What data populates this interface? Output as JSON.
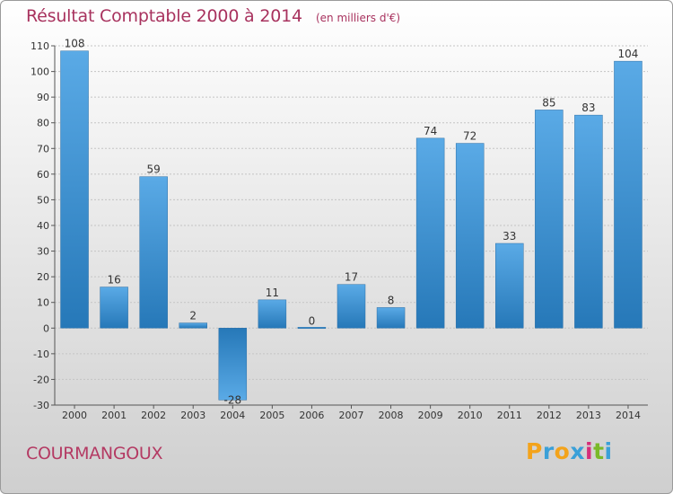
{
  "chart_title": "Résultat Comptable 2000 à 2014",
  "chart_subtitle": "(en milliers d'€)",
  "commune_name": "COURMANGOUX",
  "logo": {
    "letters": [
      "P",
      "r",
      "o",
      "x",
      "i",
      "t",
      "i"
    ],
    "colors": [
      "#f3a31b",
      "#3aa0d8",
      "#f3a31b",
      "#3aa0d8",
      "#d62f7a",
      "#7ab929",
      "#3aa0d8"
    ]
  },
  "colors": {
    "bar_top": "#5aaae6",
    "bar_bottom": "#2678b8",
    "title": "#a8325e"
  },
  "chart_data": {
    "type": "bar",
    "title": "Résultat Comptable 2000 à 2014",
    "subtitle": "(en milliers d'€)",
    "categories": [
      "2000",
      "2001",
      "2002",
      "2003",
      "2004",
      "2005",
      "2006",
      "2007",
      "2008",
      "2009",
      "2010",
      "2011",
      "2012",
      "2013",
      "2014"
    ],
    "values": [
      108,
      16,
      59,
      2,
      -28,
      11,
      0,
      17,
      8,
      74,
      72,
      33,
      85,
      83,
      104
    ],
    "yticks": [
      110,
      100,
      90,
      80,
      70,
      60,
      50,
      40,
      30,
      20,
      10,
      0,
      -10,
      -20,
      -30
    ],
    "ylim": [
      -30,
      110
    ],
    "grid": true,
    "legend": "none"
  }
}
